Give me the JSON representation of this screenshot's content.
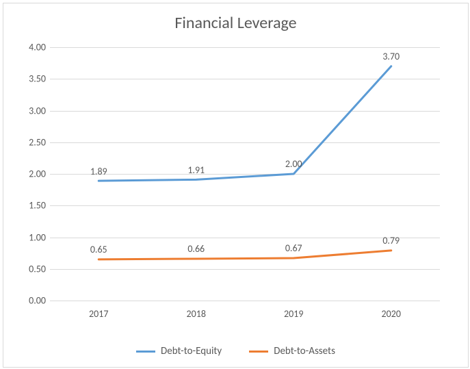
{
  "chart": {
    "type": "line",
    "title": "Financial Leverage",
    "title_fontsize": 24,
    "title_color": "#595959",
    "background_color": "#ffffff",
    "border_color": "#d9d9d9",
    "grid_color": "#d9d9d9",
    "axis_label_color": "#595959",
    "axis_label_fontsize": 14,
    "data_label_fontsize": 14,
    "x_categories": [
      "2017",
      "2018",
      "2019",
      "2020"
    ],
    "y": {
      "min": 0.0,
      "max": 4.0,
      "step": 0.5,
      "labels": [
        "0.00",
        "0.50",
        "1.00",
        "1.50",
        "2.00",
        "2.50",
        "3.00",
        "3.50",
        "4.00"
      ]
    },
    "series": [
      {
        "name": "Debt-to-Equity",
        "color": "#5b9bd5",
        "line_width": 3,
        "values": [
          1.89,
          1.91,
          2.0,
          3.7
        ],
        "labels": [
          "1.89",
          "1.91",
          "2.00",
          "3.70"
        ]
      },
      {
        "name": "Debt-to-Assets",
        "color": "#ed7d31",
        "line_width": 3,
        "values": [
          0.65,
          0.66,
          0.67,
          0.79
        ],
        "labels": [
          "0.65",
          "0.66",
          "0.67",
          "0.79"
        ]
      }
    ]
  }
}
